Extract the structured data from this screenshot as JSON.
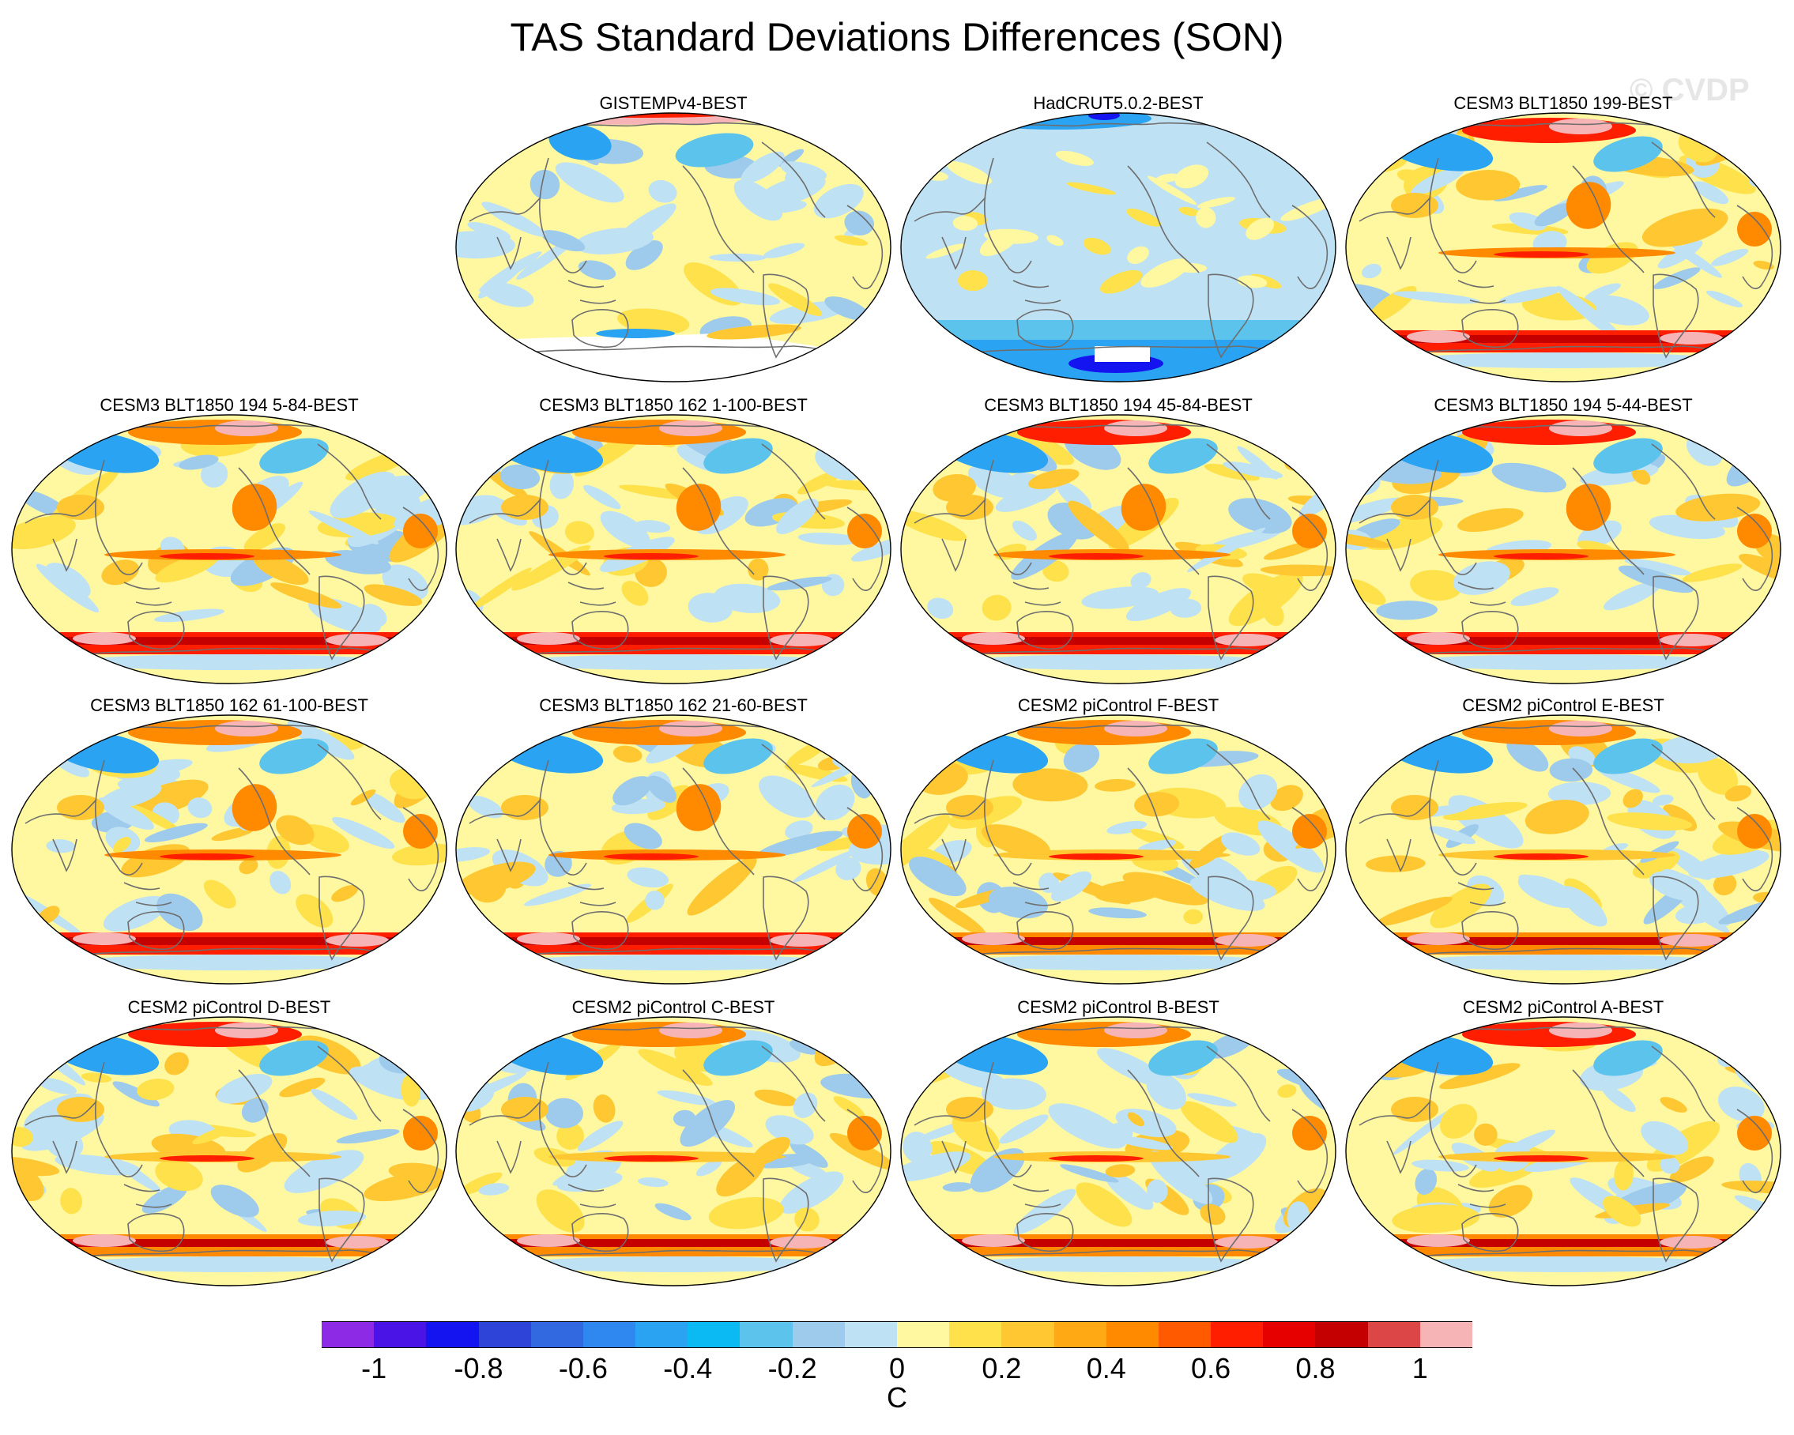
{
  "title": "TAS Standard Deviations Differences (SON)",
  "watermark": "© CVDP",
  "panels": [
    {
      "title": "GISTEMPv4-BEST",
      "variant": "obs-gistemp"
    },
    {
      "title": "HadCRUT5.0.2-BEST",
      "variant": "obs-hadcrut"
    },
    {
      "title": "CESM3 BLT1850 199-BEST",
      "variant": "model"
    },
    {
      "title": "CESM3 BLT1850 194 5-84-BEST",
      "variant": "model"
    },
    {
      "title": "CESM3 BLT1850 162 1-100-BEST",
      "variant": "model"
    },
    {
      "title": "CESM3 BLT1850 194 45-84-BEST",
      "variant": "model"
    },
    {
      "title": "CESM3 BLT1850 194 5-44-BEST",
      "variant": "model"
    },
    {
      "title": "CESM3 BLT1850 162 61-100-BEST",
      "variant": "model"
    },
    {
      "title": "CESM3 BLT1850 162 21-60-BEST",
      "variant": "model"
    },
    {
      "title": "CESM2 piControl F-BEST",
      "variant": "model2"
    },
    {
      "title": "CESM2 piControl E-BEST",
      "variant": "model2"
    },
    {
      "title": "CESM2 piControl D-BEST",
      "variant": "model2"
    },
    {
      "title": "CESM2 piControl C-BEST",
      "variant": "model2"
    },
    {
      "title": "CESM2 piControl B-BEST",
      "variant": "model2"
    },
    {
      "title": "CESM2 piControl A-BEST",
      "variant": "model2"
    }
  ],
  "colorbar": {
    "unit": "C",
    "levels": [
      -1.1,
      -1,
      -0.9,
      -0.8,
      -0.7,
      -0.6,
      -0.5,
      -0.4,
      -0.3,
      -0.2,
      -0.1,
      0,
      0.1,
      0.2,
      0.3,
      0.4,
      0.5,
      0.6,
      0.7,
      0.8,
      0.9,
      1,
      1.1
    ],
    "colors": [
      "#8d2ae6",
      "#4b14e6",
      "#1414f0",
      "#2e44d8",
      "#3269e0",
      "#2f88f0",
      "#2aa4f2",
      "#0bbaf2",
      "#5cc3ec",
      "#9ecbec",
      "#bfe1f4",
      "#fff8a0",
      "#ffe14b",
      "#ffc832",
      "#ffaa14",
      "#ff8a00",
      "#ff5a00",
      "#ff1e00",
      "#e60000",
      "#c40000",
      "#dc4646",
      "#f7b4b6"
    ],
    "tick_labels": [
      "-1",
      "-0.8",
      "-0.6",
      "-0.4",
      "-0.2",
      "0",
      "0.2",
      "0.4",
      "0.6",
      "0.8",
      "1"
    ]
  }
}
